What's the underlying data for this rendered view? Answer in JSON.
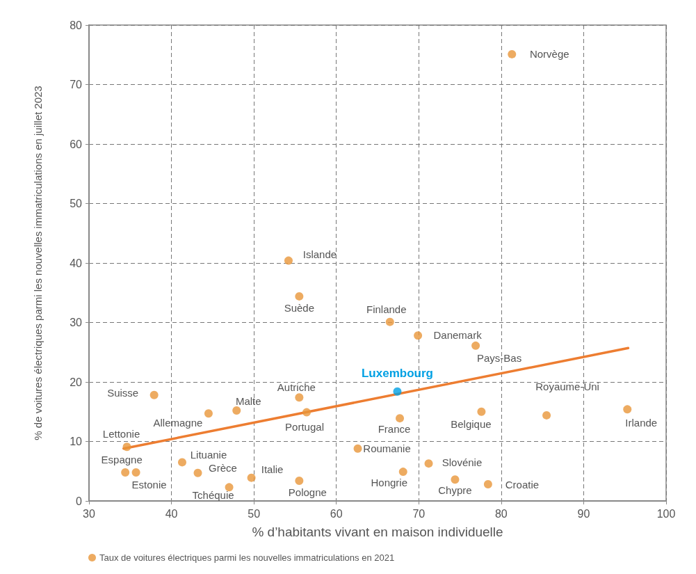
{
  "chart_data": {
    "type": "scatter",
    "xlabel": "% d’habitants vivant en maison individuelle",
    "ylabel": "% de voitures électriques parmi les nouvelles immatriculations en juillet 2023",
    "xlim": [
      30,
      100
    ],
    "xticks": [
      30,
      40,
      50,
      60,
      70,
      80,
      90,
      100
    ],
    "ylim": [
      0,
      80
    ],
    "yticks": [
      0,
      10,
      20,
      30,
      40,
      50,
      60,
      70,
      80
    ],
    "grid": true,
    "legend": "bottom left",
    "marker": "circle",
    "series": [
      {
        "name": "Taux de voitures électriques parmi les nouvelles immatriculations en 2021",
        "color": "#e8963a",
        "x": [
          81.3,
          54.2,
          55.5,
          66.5,
          69.9,
          76.9,
          37.9,
          55.5,
          47.9,
          44.5,
          56.4,
          67.7,
          77.6,
          85.5,
          95.3,
          34.6,
          62.6,
          41.3,
          71.2,
          34.4,
          35.7,
          43.2,
          68.1,
          49.7,
          74.4,
          55.5,
          78.4,
          47.0
        ],
        "values": [
          75.1,
          40.4,
          34.4,
          30.1,
          27.8,
          26.1,
          17.8,
          17.4,
          15.2,
          14.7,
          14.9,
          13.9,
          15.0,
          14.4,
          15.4,
          9.1,
          8.8,
          6.5,
          6.3,
          4.8,
          4.8,
          4.7,
          4.9,
          3.9,
          3.6,
          3.4,
          2.8,
          2.3
        ]
      },
      {
        "name": "Luxembourg",
        "color": "#00a0e3",
        "x": [
          67.4
        ],
        "values": [
          18.4
        ]
      },
      {
        "type": "line",
        "marker": "none",
        "color": "#ed7d31",
        "x": [
          34.2,
          95.4
        ],
        "values": [
          8.8,
          25.7
        ]
      }
    ],
    "annotations": [
      {
        "text": "Norvège",
        "x": 81.3,
        "y": 75.1
      },
      {
        "text": "Islande",
        "x": 54.2,
        "y": 40.4
      },
      {
        "text": "Suède",
        "x": 55.5,
        "y": 34.4
      },
      {
        "text": "Finlande",
        "x": 66.5,
        "y": 30.1
      },
      {
        "text": "Danemark",
        "x": 69.9,
        "y": 27.8
      },
      {
        "text": "Pays-Bas",
        "x": 76.9,
        "y": 26.1
      },
      {
        "text": "Suisse",
        "x": 37.9,
        "y": 17.8
      },
      {
        "text": "Autriche",
        "x": 55.5,
        "y": 17.4
      },
      {
        "text": "Malte",
        "x": 47.9,
        "y": 15.2
      },
      {
        "text": "Allemagne",
        "x": 44.5,
        "y": 14.7
      },
      {
        "text": "Portugal",
        "x": 56.4,
        "y": 14.9
      },
      {
        "text": "France",
        "x": 67.7,
        "y": 13.9
      },
      {
        "text": "Belgique",
        "x": 77.6,
        "y": 15.0
      },
      {
        "text": "Royaume-Uni",
        "x": 85.5,
        "y": 14.4
      },
      {
        "text": "Irlande",
        "x": 95.3,
        "y": 15.4
      },
      {
        "text": "Lettonie",
        "x": 34.6,
        "y": 9.1
      },
      {
        "text": "Roumanie",
        "x": 62.6,
        "y": 8.8
      },
      {
        "text": "Lituanie",
        "x": 41.3,
        "y": 6.5
      },
      {
        "text": "Slovénie",
        "x": 71.2,
        "y": 6.3
      },
      {
        "text": "Espagne",
        "x": 34.4,
        "y": 4.8
      },
      {
        "text": "Estonie",
        "x": 35.7,
        "y": 4.8
      },
      {
        "text": "Grèce",
        "x": 43.2,
        "y": 4.7
      },
      {
        "text": "Hongrie",
        "x": 68.1,
        "y": 4.9
      },
      {
        "text": "Italie",
        "x": 49.7,
        "y": 3.9
      },
      {
        "text": "Chypre",
        "x": 74.4,
        "y": 3.6
      },
      {
        "text": "Pologne",
        "x": 55.5,
        "y": 3.4
      },
      {
        "text": "Croatie",
        "x": 78.4,
        "y": 2.8
      },
      {
        "text": "Tchéquie",
        "x": 47.0,
        "y": 2.3
      }
    ]
  }
}
